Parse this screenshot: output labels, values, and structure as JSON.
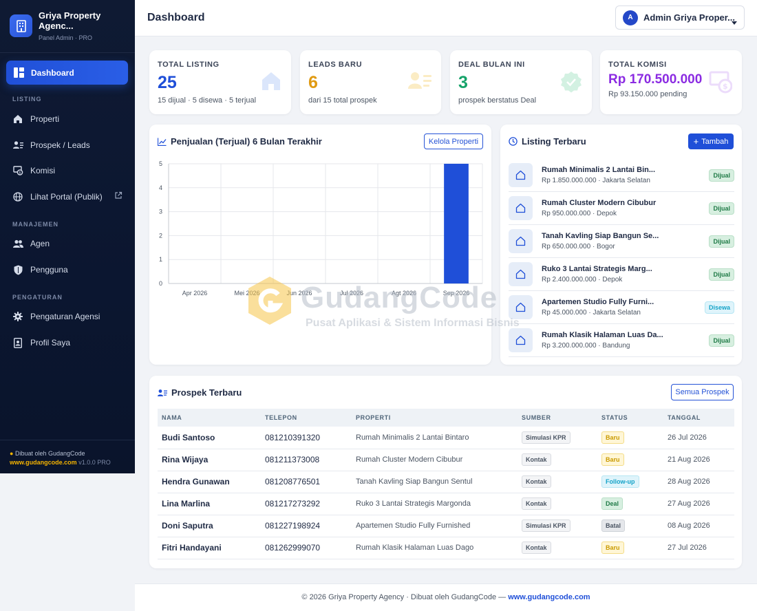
{
  "brand": {
    "name": "Griya Property Agenc...",
    "sub": "Panel Admin · PRO"
  },
  "nav": {
    "active": "Dashboard",
    "sections": [
      "LISTING",
      "MANAJEMEN",
      "PENGATURAN"
    ],
    "listing": [
      {
        "label": "Properti",
        "icon": "home-icon"
      },
      {
        "label": "Prospek / Leads",
        "icon": "users-list-icon"
      },
      {
        "label": "Komisi",
        "icon": "money-icon"
      },
      {
        "label": "Lihat Portal (Publik)",
        "icon": "globe-icon"
      }
    ],
    "manajemen": [
      {
        "label": "Agen",
        "icon": "users-icon"
      },
      {
        "label": "Pengguna",
        "icon": "shield-icon"
      }
    ],
    "pengaturan": [
      {
        "label": "Pengaturan Agensi",
        "icon": "gear-icon"
      },
      {
        "label": "Profil Saya",
        "icon": "id-card-icon"
      }
    ]
  },
  "sidebar_footer": {
    "by": "Dibuat oleh GudangCode",
    "url": "www.gudangcode.com",
    "version": "v1.0.0 PRO"
  },
  "header": {
    "title": "Dashboard",
    "user_initial": "A",
    "user_name": "Admin Griya Proper..."
  },
  "stats": [
    {
      "label": "TOTAL LISTING",
      "value": "25",
      "sub": "15 dijual · 5 disewa · 5 terjual",
      "color": "#1f4fd8",
      "icon": "house-icon"
    },
    {
      "label": "LEADS BARU",
      "value": "6",
      "sub": "dari 15 total prospek",
      "color": "#e09a12",
      "icon": "users-list-icon"
    },
    {
      "label": "DEAL BULAN INI",
      "value": "3",
      "sub": "prospek berstatus Deal",
      "color": "#16a36a",
      "icon": "check-badge-icon"
    },
    {
      "label": "TOTAL KOMISI",
      "value": "Rp 170.500.000",
      "sub": "Rp 93.150.000 pending",
      "color": "#8b2be2",
      "icon": "money-icon"
    }
  ],
  "sales_panel": {
    "title": "Penjualan (Terjual) 6 Bulan Terakhir",
    "button": "Kelola Properti"
  },
  "chart_data": {
    "type": "bar",
    "categories": [
      "Apr 2026",
      "Mei 2026",
      "Jun 2026",
      "Jul 2026",
      "Agt 2026",
      "Sep 2026"
    ],
    "values": [
      0,
      0,
      0,
      0,
      0,
      5
    ],
    "ylim": [
      0,
      5
    ],
    "yticks": [
      0,
      1,
      2,
      3,
      4,
      5
    ],
    "grid": true,
    "color": "#1f4fd8"
  },
  "listing_panel": {
    "title": "Listing Terbaru",
    "button": "Tambah",
    "items": [
      {
        "title": "Rumah Minimalis 2 Lantai Bin...",
        "sub": "Rp 1.850.000.000 · Jakarta Selatan",
        "badge": "Dijual"
      },
      {
        "title": "Rumah Cluster Modern Cibubur",
        "sub": "Rp 950.000.000 · Depok",
        "badge": "Dijual"
      },
      {
        "title": "Tanah Kavling Siap Bangun Se...",
        "sub": "Rp 650.000.000 · Bogor",
        "badge": "Dijual"
      },
      {
        "title": "Ruko 3 Lantai Strategis Marg...",
        "sub": "Rp 2.400.000.000 · Depok",
        "badge": "Dijual"
      },
      {
        "title": "Apartemen Studio Fully Furni...",
        "sub": "Rp 45.000.000 · Jakarta Selatan",
        "badge": "Disewa"
      },
      {
        "title": "Rumah Klasik Halaman Luas Da...",
        "sub": "Rp 3.200.000.000 · Bandung",
        "badge": "Dijual"
      }
    ]
  },
  "prospects": {
    "title": "Prospek Terbaru",
    "button": "Semua Prospek",
    "columns": [
      "NAMA",
      "TELEPON",
      "PROPERTI",
      "SUMBER",
      "STATUS",
      "TANGGAL"
    ],
    "rows": [
      {
        "nama": "Budi Santoso",
        "telepon": "081210391320",
        "properti": "Rumah Minimalis 2 Lantai Bintaro",
        "sumber": "Simulasi KPR",
        "status": "Baru",
        "tanggal": "26 Jul 2026"
      },
      {
        "nama": "Rina Wijaya",
        "telepon": "081211373008",
        "properti": "Rumah Cluster Modern Cibubur",
        "sumber": "Kontak",
        "status": "Baru",
        "tanggal": "21 Aug 2026"
      },
      {
        "nama": "Hendra Gunawan",
        "telepon": "081208776501",
        "properti": "Tanah Kavling Siap Bangun Sentul",
        "sumber": "Kontak",
        "status": "Follow-up",
        "tanggal": "28 Aug 2026"
      },
      {
        "nama": "Lina Marlina",
        "telepon": "081217273292",
        "properti": "Ruko 3 Lantai Strategis Margonda",
        "sumber": "Kontak",
        "status": "Deal",
        "tanggal": "27 Aug 2026"
      },
      {
        "nama": "Doni Saputra",
        "telepon": "081227198924",
        "properti": "Apartemen Studio Fully Furnished",
        "sumber": "Simulasi KPR",
        "status": "Batal",
        "tanggal": "08 Aug 2026"
      },
      {
        "nama": "Fitri Handayani",
        "telepon": "081262999070",
        "properti": "Rumah Klasik Halaman Luas Dago",
        "sumber": "Kontak",
        "status": "Baru",
        "tanggal": "27 Jul 2026"
      }
    ]
  },
  "footer": {
    "text": "© 2026 Griya Property Agency · Dibuat oleh GudangCode —",
    "link": "www.gudangcode.com"
  },
  "watermark": {
    "title": "GudangCode",
    "sub": "Pusat Aplikasi & Sistem Informasi Bisnis"
  }
}
